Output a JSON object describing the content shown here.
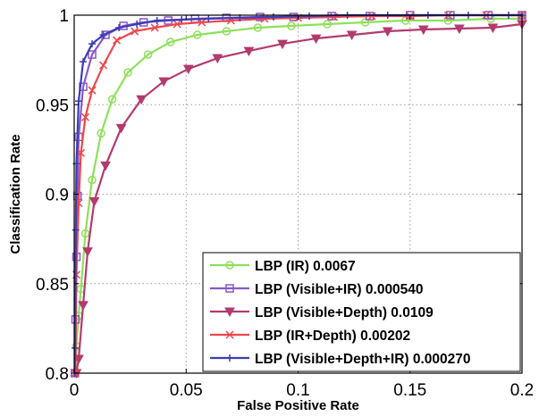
{
  "chart_data": {
    "type": "line",
    "title": "",
    "xlabel": "False Positive Rate",
    "ylabel": "Classification Rate",
    "xlim": [
      0,
      0.2
    ],
    "ylim": [
      0.8,
      1
    ],
    "x_ticks": [
      "0",
      "0.05",
      "0.1",
      "0.15",
      "0.2"
    ],
    "y_ticks": [
      "0.8",
      "0.85",
      "0.9",
      "0.95",
      "1"
    ],
    "grid": true,
    "legend_position": "bottom-right",
    "series": [
      {
        "name": "LBP (IR) 0.0067",
        "color": "#8fe05a",
        "marker": "circle",
        "points": [
          [
            0.0005,
            0.8
          ],
          [
            0.001,
            0.815
          ],
          [
            0.002,
            0.832
          ],
          [
            0.003,
            0.847
          ],
          [
            0.005,
            0.878
          ],
          [
            0.008,
            0.908
          ],
          [
            0.012,
            0.934
          ],
          [
            0.017,
            0.953
          ],
          [
            0.024,
            0.968
          ],
          [
            0.033,
            0.978
          ],
          [
            0.043,
            0.985
          ],
          [
            0.055,
            0.989
          ],
          [
            0.068,
            0.991
          ],
          [
            0.082,
            0.993
          ],
          [
            0.097,
            0.994
          ],
          [
            0.113,
            0.995
          ],
          [
            0.13,
            0.996
          ],
          [
            0.148,
            0.997
          ],
          [
            0.167,
            0.997
          ],
          [
            0.186,
            0.998
          ],
          [
            0.2,
            0.998
          ]
        ]
      },
      {
        "name": "LBP (Visible+IR) 0.000540",
        "color": "#8a58c8",
        "marker": "square",
        "points": [
          [
            0.0003,
            0.8
          ],
          [
            0.0006,
            0.83
          ],
          [
            0.001,
            0.865
          ],
          [
            0.0015,
            0.899
          ],
          [
            0.002,
            0.932
          ],
          [
            0.004,
            0.96
          ],
          [
            0.008,
            0.978
          ],
          [
            0.014,
            0.989
          ],
          [
            0.022,
            0.994
          ],
          [
            0.031,
            0.996
          ],
          [
            0.042,
            0.997
          ],
          [
            0.054,
            0.998
          ],
          [
            0.068,
            0.9985
          ],
          [
            0.083,
            0.999
          ],
          [
            0.098,
            0.999
          ],
          [
            0.115,
            0.9995
          ],
          [
            0.132,
            0.9995
          ],
          [
            0.15,
            1.0
          ],
          [
            0.168,
            1.0
          ],
          [
            0.185,
            1.0
          ],
          [
            0.2,
            1.0
          ]
        ]
      },
      {
        "name": "LBP (Visible+Depth) 0.0109",
        "color": "#b33a6e",
        "marker": "triangle-down",
        "points": [
          [
            0.001,
            0.8
          ],
          [
            0.002,
            0.808
          ],
          [
            0.004,
            0.838
          ],
          [
            0.006,
            0.868
          ],
          [
            0.009,
            0.896
          ],
          [
            0.014,
            0.916
          ],
          [
            0.021,
            0.937
          ],
          [
            0.03,
            0.953
          ],
          [
            0.04,
            0.963
          ],
          [
            0.051,
            0.97
          ],
          [
            0.064,
            0.976
          ],
          [
            0.078,
            0.98
          ],
          [
            0.093,
            0.984
          ],
          [
            0.108,
            0.987
          ],
          [
            0.124,
            0.989
          ],
          [
            0.14,
            0.991
          ],
          [
            0.156,
            0.992
          ],
          [
            0.172,
            0.9925
          ],
          [
            0.187,
            0.993
          ],
          [
            0.2,
            0.995
          ]
        ]
      },
      {
        "name": "LBP (IR+Depth) 0.00202",
        "color": "#f0464a",
        "marker": "x",
        "points": [
          [
            0.0005,
            0.8
          ],
          [
            0.001,
            0.855
          ],
          [
            0.002,
            0.895
          ],
          [
            0.003,
            0.923
          ],
          [
            0.005,
            0.943
          ],
          [
            0.008,
            0.958
          ],
          [
            0.013,
            0.972
          ],
          [
            0.019,
            0.986
          ],
          [
            0.027,
            0.991
          ],
          [
            0.036,
            0.993
          ],
          [
            0.046,
            0.995
          ],
          [
            0.057,
            0.996
          ],
          [
            0.07,
            0.997
          ],
          [
            0.085,
            0.998
          ],
          [
            0.1,
            0.9985
          ],
          [
            0.116,
            0.999
          ],
          [
            0.133,
            0.9995
          ],
          [
            0.15,
            0.9995
          ],
          [
            0.167,
            1.0
          ],
          [
            0.184,
            1.0
          ],
          [
            0.2,
            1.0
          ]
        ]
      },
      {
        "name": "LBP (Visible+Depth+IR) 0.000270",
        "color": "#3d3db5",
        "marker": "plus",
        "points": [
          [
            0.0002,
            0.8
          ],
          [
            0.0004,
            0.814
          ],
          [
            0.0007,
            0.88
          ],
          [
            0.001,
            0.917
          ],
          [
            0.002,
            0.952
          ],
          [
            0.004,
            0.974
          ],
          [
            0.008,
            0.984
          ],
          [
            0.013,
            0.989
          ],
          [
            0.02,
            0.993
          ],
          [
            0.028,
            0.995
          ],
          [
            0.037,
            0.997
          ],
          [
            0.048,
            0.9975
          ],
          [
            0.06,
            0.998
          ],
          [
            0.074,
            0.9985
          ],
          [
            0.089,
            0.999
          ],
          [
            0.105,
            0.9995
          ],
          [
            0.122,
            1.0
          ],
          [
            0.14,
            1.0
          ],
          [
            0.158,
            1.0
          ],
          [
            0.176,
            1.0
          ],
          [
            0.194,
            1.0
          ],
          [
            0.2,
            1.0
          ]
        ]
      }
    ]
  }
}
